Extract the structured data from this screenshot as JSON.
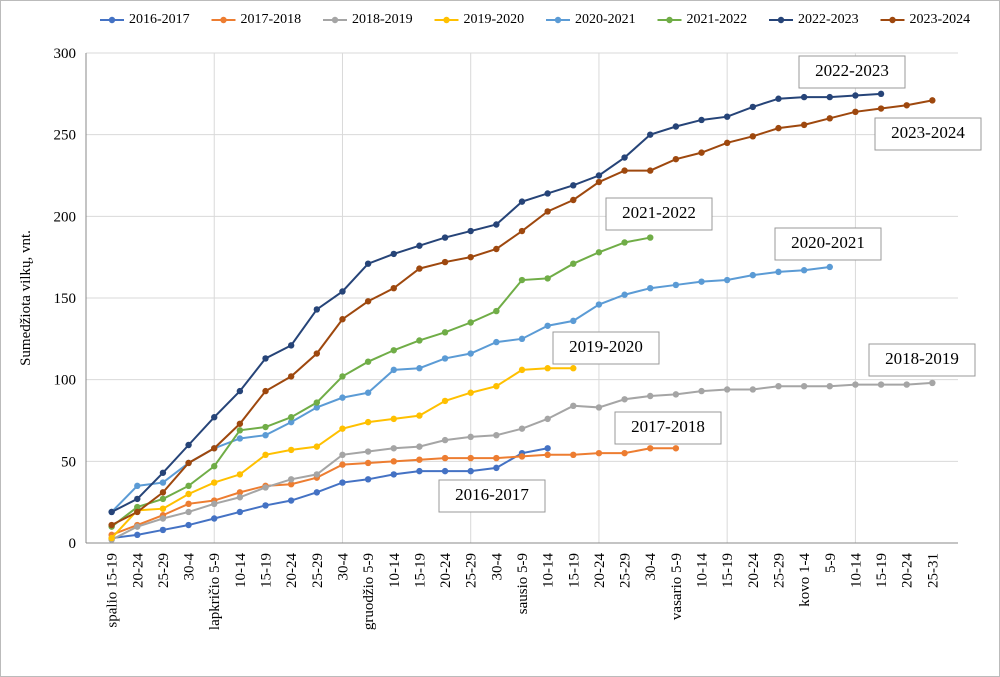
{
  "chart_data": {
    "type": "line",
    "y_label": "Sumedžiota vilkų, vnt.",
    "categories": [
      "spalio 15-19",
      "20-24",
      "25-29",
      "30-4",
      "lapkričio 5-9",
      "10-14",
      "15-19",
      "20-24",
      "25-29",
      "30-4",
      "gruodžio 5-9",
      "10-14",
      "15-19",
      "20-24",
      "25-29",
      "30-4",
      "sausio 5-9",
      "10-14",
      "15-19",
      "20-24",
      "25-29",
      "30-4",
      "vasario 5-9",
      "10-14",
      "15-19",
      "20-24",
      "25-29",
      "kovo 1-4",
      "5-9",
      "10-14",
      "15-19",
      "20-24",
      "25-31"
    ],
    "series": [
      {
        "name": "2016-2017",
        "color": "#4472c4",
        "values": [
          3,
          5,
          8,
          11,
          15,
          19,
          23,
          26,
          31,
          37,
          39,
          42,
          44,
          44,
          44,
          46,
          55,
          58,
          null,
          null,
          null,
          null,
          null,
          null,
          null,
          null,
          null,
          null,
          null,
          null,
          null,
          null,
          null
        ]
      },
      {
        "name": "2017-2018",
        "color": "#ed7d31",
        "values": [
          5,
          11,
          17,
          24,
          26,
          31,
          35,
          36,
          40,
          48,
          49,
          50,
          51,
          52,
          52,
          52,
          53,
          54,
          54,
          55,
          55,
          58,
          58,
          null,
          null,
          null,
          null,
          null,
          null,
          null,
          null,
          null,
          null
        ]
      },
      {
        "name": "2018-2019",
        "color": "#a5a5a5",
        "values": [
          2,
          10,
          15,
          19,
          24,
          28,
          34,
          39,
          42,
          54,
          56,
          58,
          59,
          63,
          65,
          66,
          70,
          76,
          84,
          83,
          88,
          90,
          91,
          93,
          94,
          94,
          96,
          96,
          96,
          97,
          97,
          97,
          98
        ]
      },
      {
        "name": "2019-2020",
        "color": "#ffc000",
        "values": [
          3,
          20,
          21,
          30,
          37,
          42,
          54,
          57,
          59,
          70,
          74,
          76,
          78,
          87,
          92,
          96,
          106,
          107,
          107,
          null,
          null,
          null,
          null,
          null,
          null,
          null,
          null,
          null,
          null,
          null,
          null,
          null,
          null
        ]
      },
      {
        "name": "2020-2021",
        "color": "#5b9bd5",
        "values": [
          19,
          35,
          37,
          49,
          58,
          64,
          66,
          74,
          83,
          89,
          92,
          106,
          107,
          113,
          116,
          123,
          125,
          133,
          136,
          146,
          152,
          156,
          158,
          160,
          161,
          164,
          166,
          167,
          169,
          null,
          null,
          null,
          null
        ]
      },
      {
        "name": "2021-2022",
        "color": "#70ad47",
        "values": [
          10,
          22,
          27,
          35,
          47,
          69,
          71,
          77,
          86,
          102,
          111,
          118,
          124,
          129,
          135,
          142,
          161,
          162,
          171,
          178,
          184,
          187,
          null,
          null,
          null,
          null,
          null,
          null,
          null,
          null,
          null,
          null,
          null
        ]
      },
      {
        "name": "2022-2023",
        "color": "#264478",
        "values": [
          19,
          27,
          43,
          60,
          77,
          93,
          113,
          121,
          143,
          154,
          171,
          177,
          182,
          187,
          191,
          195,
          209,
          214,
          219,
          225,
          236,
          250,
          255,
          259,
          261,
          267,
          272,
          273,
          273,
          274,
          275,
          null,
          null
        ]
      },
      {
        "name": "2023-2024",
        "color": "#9e480e",
        "values": [
          11,
          19,
          31,
          49,
          58,
          73,
          93,
          102,
          116,
          137,
          148,
          156,
          168,
          172,
          175,
          180,
          191,
          203,
          210,
          221,
          228,
          228,
          235,
          239,
          245,
          249,
          254,
          256,
          260,
          264,
          266,
          268,
          271
        ]
      }
    ],
    "annotations": [
      "2022-2023",
      "2023-2024",
      "2021-2022",
      "2020-2021",
      "2018-2019",
      "2019-2020",
      "2017-2018",
      "2016-2017"
    ],
    "ylim": [
      0,
      300
    ],
    "yticks": [
      0,
      50,
      100,
      150,
      200,
      250,
      300
    ],
    "grid": true
  }
}
